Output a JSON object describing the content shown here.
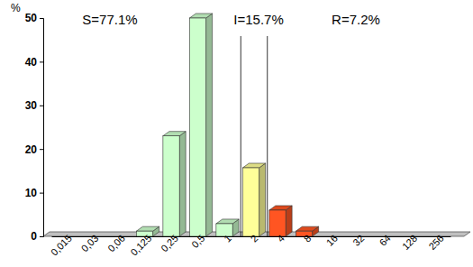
{
  "chart_data": {
    "type": "bar",
    "y_label": "%",
    "categories": [
      "0,015",
      "0,03",
      "0,06",
      "0,125",
      "0,25",
      "0,5",
      "1",
      "2",
      "4",
      "8",
      "16",
      "32",
      "64",
      "128",
      "256"
    ],
    "values": [
      0,
      0,
      0,
      1.2,
      23,
      50,
      2.9,
      15.7,
      6.0,
      1.2,
      0,
      0,
      0,
      0,
      0
    ],
    "colors": [
      "#ccffcc",
      "#ccffcc",
      "#ccffcc",
      "#ccffcc",
      "#ccffcc",
      "#ccffcc",
      "#ccffcc",
      "#ffff99",
      "#ff5522",
      "#ff5522",
      "#ff5522",
      "#ff5522",
      "#ff5522",
      "#ff5522",
      "#ff5522"
    ],
    "annotations": [
      "S=77.1%",
      "I=15.7%",
      "R=7.2%"
    ],
    "ylim": [
      0,
      50
    ],
    "yticks": [
      0,
      10,
      20,
      30,
      40,
      50
    ],
    "grid": false
  }
}
